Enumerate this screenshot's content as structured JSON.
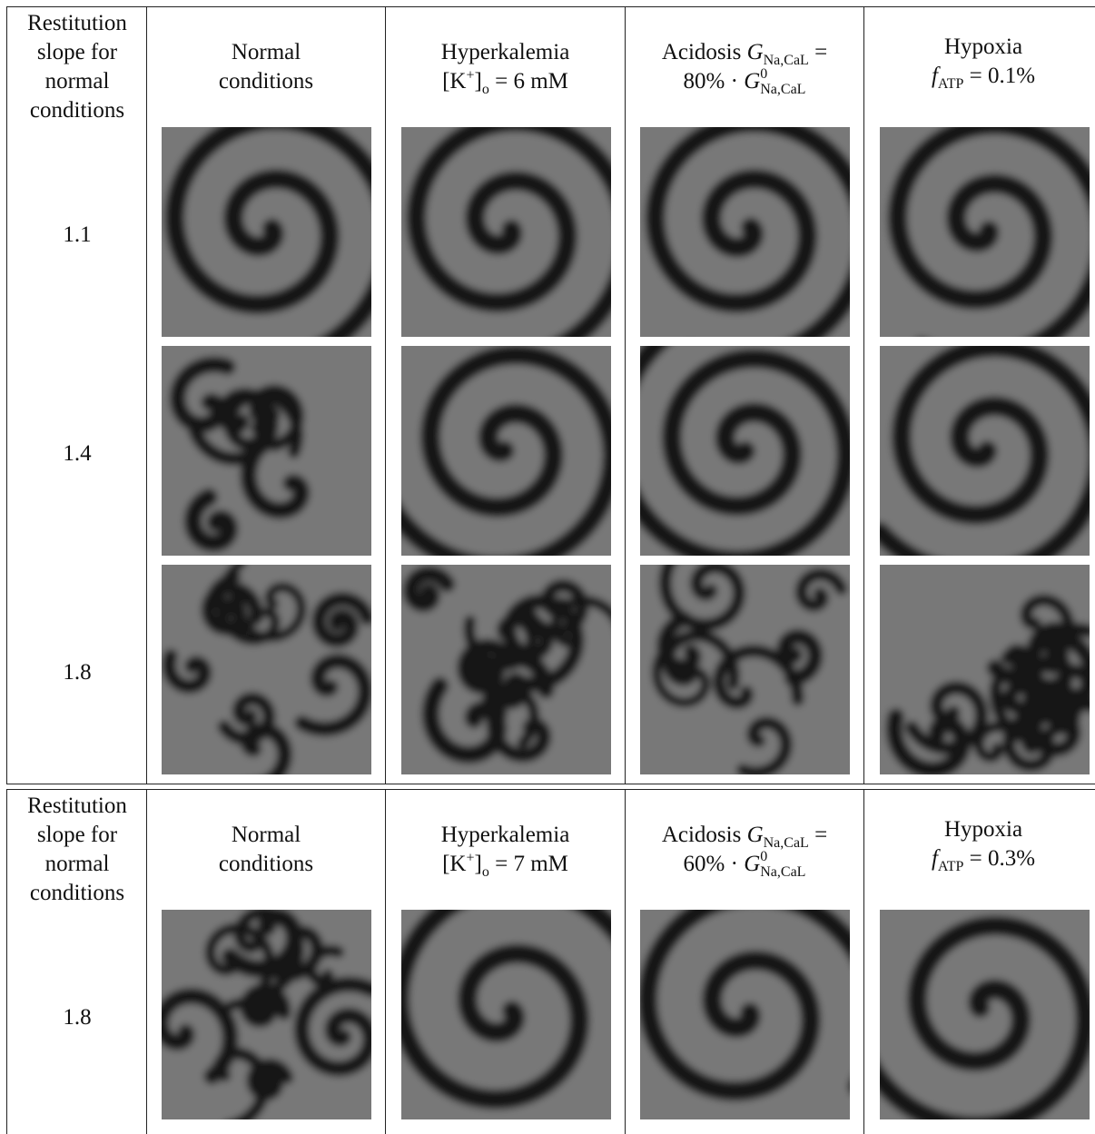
{
  "tables": [
    {
      "label_header": [
        "Restitution",
        "slope for",
        "normal",
        "conditions"
      ],
      "columns": [
        {
          "lines": [
            "Normal",
            "conditions"
          ]
        },
        {
          "lines": [
            "Hyperkalemia",
            "[K+]o = 6 mM"
          ]
        },
        {
          "lines": [
            "Acidosis GNa,CaL =",
            "80% · G0Na,CaL"
          ]
        },
        {
          "lines": [
            "Hypoxia",
            "fATP = 0.1%"
          ]
        }
      ],
      "rows": [
        {
          "slope": "1.1"
        },
        {
          "slope": "1.4"
        },
        {
          "slope": "1.8"
        }
      ]
    },
    {
      "label_header": [
        "Restitution",
        "slope for",
        "normal",
        "conditions"
      ],
      "columns": [
        {
          "lines": [
            "Normal",
            "conditions"
          ]
        },
        {
          "lines": [
            "Hyperkalemia",
            "[K+]o = 7 mM"
          ]
        },
        {
          "lines": [
            "Acidosis GNa,CaL =",
            "60% · G0Na,CaL"
          ]
        },
        {
          "lines": [
            "Hypoxia",
            "fATP = 0.3%"
          ]
        }
      ],
      "rows": [
        {
          "slope": "1.8"
        }
      ]
    }
  ],
  "panel_colors": {
    "wave": "#787878",
    "background": "#161616"
  }
}
